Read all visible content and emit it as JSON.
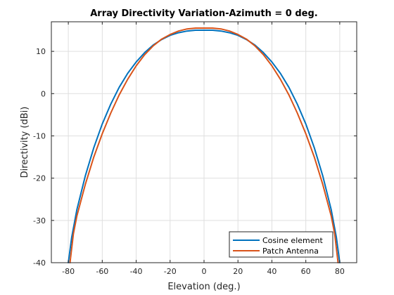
{
  "chart_data": {
    "type": "line",
    "title": "Array Directivity Variation-Azimuth = 0 deg.",
    "xlabel": "Elevation (deg.)",
    "ylabel": "Directivity (dBi)",
    "xlim": [
      -90,
      90
    ],
    "ylim": [
      -40,
      17
    ],
    "xticks": [
      -80,
      -60,
      -40,
      -20,
      0,
      20,
      40,
      60,
      80
    ],
    "yticks": [
      -40,
      -30,
      -20,
      -10,
      0,
      10
    ],
    "grid": true,
    "legend_position": "bottom-right",
    "series": [
      {
        "name": "Cosine element",
        "color": "#0072bd",
        "x": [
          -80,
          -78,
          -75,
          -70,
          -65,
          -60,
          -55,
          -50,
          -45,
          -40,
          -35,
          -30,
          -25,
          -20,
          -15,
          -10,
          -5,
          0,
          5,
          10,
          15,
          20,
          25,
          30,
          35,
          40,
          45,
          50,
          55,
          60,
          65,
          70,
          75,
          78,
          80
        ],
        "y": [
          -40,
          -34,
          -27.5,
          -19.5,
          -12.8,
          -7.2,
          -2.5,
          1.5,
          4.8,
          7.5,
          9.7,
          11.5,
          12.8,
          13.8,
          14.4,
          14.8,
          15,
          15,
          15,
          14.8,
          14.4,
          13.8,
          12.8,
          11.5,
          9.7,
          7.5,
          4.8,
          1.5,
          -2.5,
          -7.2,
          -12.8,
          -19.5,
          -27.5,
          -34,
          -40
        ]
      },
      {
        "name": "Patch Antenna",
        "color": "#d95319",
        "x": [
          -79,
          -77,
          -75,
          -70,
          -65,
          -60,
          -55,
          -50,
          -45,
          -40,
          -35,
          -30,
          -25,
          -20,
          -15,
          -10,
          -5,
          0,
          5,
          10,
          15,
          20,
          25,
          30,
          35,
          40,
          45,
          50,
          55,
          60,
          65,
          70,
          75,
          77,
          79
        ],
        "y": [
          -40,
          -33.2,
          -29,
          -21.5,
          -15,
          -9.5,
          -4.6,
          -0.3,
          3.4,
          6.6,
          9.2,
          11.3,
          12.9,
          14,
          14.8,
          15.3,
          15.5,
          15.5,
          15.5,
          15.3,
          14.8,
          14,
          12.9,
          11.3,
          9.2,
          6.6,
          3.4,
          -0.3,
          -4.6,
          -9.5,
          -15,
          -21.5,
          -29,
          -33.2,
          -40
        ]
      }
    ]
  }
}
